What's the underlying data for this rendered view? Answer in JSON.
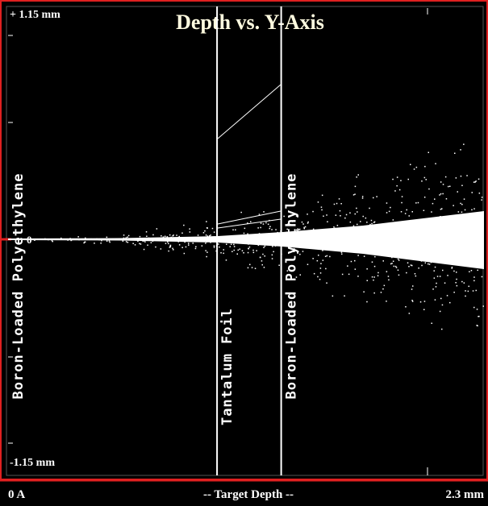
{
  "plot": {
    "title": "Depth vs. Y-Axis",
    "y_max_label": "+ 1.15 mm",
    "y_min_label": "-1.15 mm",
    "y_zero_label": "0",
    "x_min_label": "0 A",
    "x_axis_label": "-- Target Depth --",
    "x_max_label": "2.3 mm",
    "xlim": [
      0,
      2.3
    ],
    "layers": [
      {
        "name": "Boron-Loaded Polyethylene",
        "start": 0,
        "end": 1.01
      },
      {
        "name": "Tantalum Foil",
        "start": 1.01,
        "end": 1.32
      },
      {
        "name": "Boron-Loaded Polyethylene",
        "start": 1.32,
        "end": 2.3
      }
    ]
  }
}
